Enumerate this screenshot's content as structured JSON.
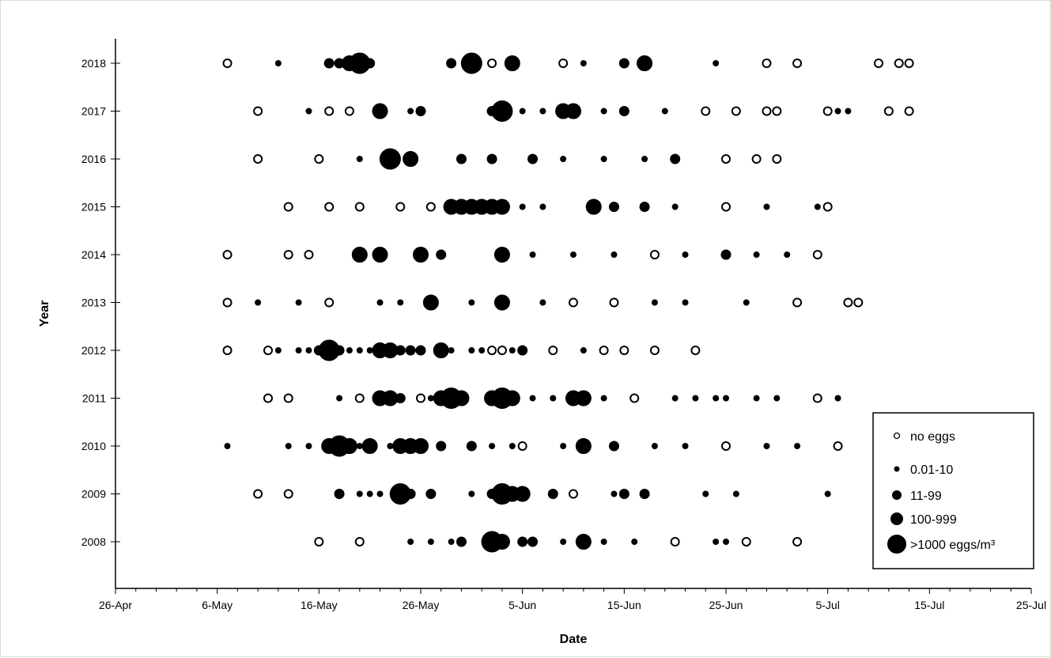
{
  "chart_data": {
    "type": "scatter",
    "title": "",
    "xlabel": "Date",
    "ylabel": "Year",
    "x_ticks": [
      "26-Apr",
      "6-May",
      "16-May",
      "26-May",
      "5-Jun",
      "15-Jun",
      "25-Jun",
      "5-Jul",
      "15-Jul",
      "25-Jul"
    ],
    "xlim": [
      "26-Apr",
      "25-Jul"
    ],
    "years": [
      "2018",
      "2017",
      "2016",
      "2015",
      "2014",
      "2013",
      "2012",
      "2011",
      "2010",
      "2009",
      "2008"
    ],
    "grid": false,
    "legend_position": "bottom-right",
    "legend": [
      {
        "key": "none",
        "label": "no eggs"
      },
      {
        "key": "a",
        "label": "0.01-10"
      },
      {
        "key": "b",
        "label": "11-99"
      },
      {
        "key": "c",
        "label": "100-999"
      },
      {
        "key": "d",
        "label": ">1000 eggs/m³"
      }
    ],
    "observations": {
      "2018": [
        [
          "7-May",
          "none"
        ],
        [
          "12-May",
          "a"
        ],
        [
          "17-May",
          "b"
        ],
        [
          "18-May",
          "b"
        ],
        [
          "19-May",
          "c"
        ],
        [
          "20-May",
          "d"
        ],
        [
          "21-May",
          "b"
        ],
        [
          "29-May",
          "b"
        ],
        [
          "31-May",
          "d"
        ],
        [
          "2-Jun",
          "none"
        ],
        [
          "4-Jun",
          "c"
        ],
        [
          "9-Jun",
          "none"
        ],
        [
          "11-Jun",
          "a"
        ],
        [
          "15-Jun",
          "b"
        ],
        [
          "17-Jun",
          "c"
        ],
        [
          "24-Jun",
          "a"
        ],
        [
          "29-Jun",
          "none"
        ],
        [
          "2-Jul",
          "none"
        ],
        [
          "10-Jul",
          "none"
        ],
        [
          "12-Jul",
          "none"
        ],
        [
          "13-Jul",
          "none"
        ]
      ],
      "2017": [
        [
          "10-May",
          "none"
        ],
        [
          "15-May",
          "a"
        ],
        [
          "17-May",
          "none"
        ],
        [
          "19-May",
          "none"
        ],
        [
          "22-May",
          "c"
        ],
        [
          "25-May",
          "a"
        ],
        [
          "26-May",
          "b"
        ],
        [
          "2-Jun",
          "b"
        ],
        [
          "3-Jun",
          "d"
        ],
        [
          "5-Jun",
          "a"
        ],
        [
          "7-Jun",
          "a"
        ],
        [
          "9-Jun",
          "c"
        ],
        [
          "10-Jun",
          "c"
        ],
        [
          "13-Jun",
          "a"
        ],
        [
          "15-Jun",
          "b"
        ],
        [
          "19-Jun",
          "a"
        ],
        [
          "23-Jun",
          "none"
        ],
        [
          "26-Jun",
          "none"
        ],
        [
          "29-Jun",
          "none"
        ],
        [
          "30-Jun",
          "none"
        ],
        [
          "5-Jul",
          "none"
        ],
        [
          "6-Jul",
          "a"
        ],
        [
          "7-Jul",
          "a"
        ],
        [
          "11-Jul",
          "none"
        ],
        [
          "13-Jul",
          "none"
        ]
      ],
      "2016": [
        [
          "10-May",
          "none"
        ],
        [
          "16-May",
          "none"
        ],
        [
          "20-May",
          "a"
        ],
        [
          "23-May",
          "d"
        ],
        [
          "25-May",
          "c"
        ],
        [
          "30-May",
          "b"
        ],
        [
          "2-Jun",
          "b"
        ],
        [
          "6-Jun",
          "b"
        ],
        [
          "9-Jun",
          "a"
        ],
        [
          "13-Jun",
          "a"
        ],
        [
          "17-Jun",
          "a"
        ],
        [
          "20-Jun",
          "b"
        ],
        [
          "25-Jun",
          "none"
        ],
        [
          "28-Jun",
          "none"
        ],
        [
          "30-Jun",
          "none"
        ]
      ],
      "2015": [
        [
          "13-May",
          "none"
        ],
        [
          "17-May",
          "none"
        ],
        [
          "20-May",
          "none"
        ],
        [
          "24-May",
          "none"
        ],
        [
          "27-May",
          "none"
        ],
        [
          "29-May",
          "c"
        ],
        [
          "30-May",
          "c"
        ],
        [
          "31-May",
          "c"
        ],
        [
          "1-Jun",
          "c"
        ],
        [
          "2-Jun",
          "c"
        ],
        [
          "3-Jun",
          "c"
        ],
        [
          "5-Jun",
          "a"
        ],
        [
          "7-Jun",
          "a"
        ],
        [
          "12-Jun",
          "c"
        ],
        [
          "14-Jun",
          "b"
        ],
        [
          "17-Jun",
          "b"
        ],
        [
          "20-Jun",
          "a"
        ],
        [
          "25-Jun",
          "none"
        ],
        [
          "29-Jun",
          "a"
        ],
        [
          "4-Jul",
          "a"
        ],
        [
          "5-Jul",
          "none"
        ]
      ],
      "2014": [
        [
          "7-May",
          "none"
        ],
        [
          "13-May",
          "none"
        ],
        [
          "15-May",
          "none"
        ],
        [
          "20-May",
          "c"
        ],
        [
          "22-May",
          "c"
        ],
        [
          "26-May",
          "c"
        ],
        [
          "28-May",
          "b"
        ],
        [
          "3-Jun",
          "c"
        ],
        [
          "6-Jun",
          "a"
        ],
        [
          "10-Jun",
          "a"
        ],
        [
          "14-Jun",
          "a"
        ],
        [
          "18-Jun",
          "none"
        ],
        [
          "21-Jun",
          "a"
        ],
        [
          "25-Jun",
          "b"
        ],
        [
          "28-Jun",
          "a"
        ],
        [
          "1-Jul",
          "a"
        ],
        [
          "4-Jul",
          "none"
        ]
      ],
      "2013": [
        [
          "7-May",
          "none"
        ],
        [
          "10-May",
          "a"
        ],
        [
          "14-May",
          "a"
        ],
        [
          "17-May",
          "none"
        ],
        [
          "22-May",
          "a"
        ],
        [
          "24-May",
          "a"
        ],
        [
          "27-May",
          "c"
        ],
        [
          "31-May",
          "a"
        ],
        [
          "3-Jun",
          "c"
        ],
        [
          "7-Jun",
          "a"
        ],
        [
          "10-Jun",
          "none"
        ],
        [
          "14-Jun",
          "none"
        ],
        [
          "18-Jun",
          "a"
        ],
        [
          "21-Jun",
          "a"
        ],
        [
          "27-Jun",
          "a"
        ],
        [
          "2-Jul",
          "none"
        ],
        [
          "7-Jul",
          "none"
        ],
        [
          "8-Jul",
          "none"
        ]
      ],
      "2012": [
        [
          "7-May",
          "none"
        ],
        [
          "11-May",
          "none"
        ],
        [
          "12-May",
          "a"
        ],
        [
          "14-May",
          "a"
        ],
        [
          "15-May",
          "a"
        ],
        [
          "16-May",
          "b"
        ],
        [
          "17-May",
          "d"
        ],
        [
          "18-May",
          "b"
        ],
        [
          "19-May",
          "a"
        ],
        [
          "20-May",
          "a"
        ],
        [
          "21-May",
          "a"
        ],
        [
          "22-May",
          "c"
        ],
        [
          "23-May",
          "c"
        ],
        [
          "24-May",
          "b"
        ],
        [
          "25-May",
          "b"
        ],
        [
          "26-May",
          "b"
        ],
        [
          "28-May",
          "c"
        ],
        [
          "29-May",
          "a"
        ],
        [
          "31-May",
          "a"
        ],
        [
          "1-Jun",
          "a"
        ],
        [
          "2-Jun",
          "none"
        ],
        [
          "3-Jun",
          "none"
        ],
        [
          "4-Jun",
          "a"
        ],
        [
          "5-Jun",
          "b"
        ],
        [
          "8-Jun",
          "none"
        ],
        [
          "11-Jun",
          "a"
        ],
        [
          "13-Jun",
          "none"
        ],
        [
          "15-Jun",
          "none"
        ],
        [
          "18-Jun",
          "none"
        ],
        [
          "22-Jun",
          "none"
        ]
      ],
      "2011": [
        [
          "11-May",
          "none"
        ],
        [
          "13-May",
          "none"
        ],
        [
          "18-May",
          "a"
        ],
        [
          "20-May",
          "none"
        ],
        [
          "22-May",
          "c"
        ],
        [
          "23-May",
          "c"
        ],
        [
          "24-May",
          "b"
        ],
        [
          "26-May",
          "none"
        ],
        [
          "27-May",
          "a"
        ],
        [
          "28-May",
          "c"
        ],
        [
          "29-May",
          "d"
        ],
        [
          "30-May",
          "c"
        ],
        [
          "2-Jun",
          "c"
        ],
        [
          "3-Jun",
          "d"
        ],
        [
          "4-Jun",
          "c"
        ],
        [
          "6-Jun",
          "a"
        ],
        [
          "8-Jun",
          "a"
        ],
        [
          "10-Jun",
          "c"
        ],
        [
          "11-Jun",
          "c"
        ],
        [
          "13-Jun",
          "a"
        ],
        [
          "16-Jun",
          "none"
        ],
        [
          "20-Jun",
          "a"
        ],
        [
          "22-Jun",
          "a"
        ],
        [
          "24-Jun",
          "a"
        ],
        [
          "25-Jun",
          "a"
        ],
        [
          "28-Jun",
          "a"
        ],
        [
          "30-Jun",
          "a"
        ],
        [
          "4-Jul",
          "none"
        ],
        [
          "6-Jul",
          "a"
        ]
      ],
      "2010": [
        [
          "7-May",
          "a"
        ],
        [
          "13-May",
          "a"
        ],
        [
          "15-May",
          "a"
        ],
        [
          "17-May",
          "c"
        ],
        [
          "18-May",
          "d"
        ],
        [
          "19-May",
          "c"
        ],
        [
          "20-May",
          "a"
        ],
        [
          "21-May",
          "c"
        ],
        [
          "23-May",
          "a"
        ],
        [
          "24-May",
          "c"
        ],
        [
          "25-May",
          "c"
        ],
        [
          "26-May",
          "c"
        ],
        [
          "28-May",
          "b"
        ],
        [
          "31-May",
          "b"
        ],
        [
          "2-Jun",
          "a"
        ],
        [
          "4-Jun",
          "a"
        ],
        [
          "5-Jun",
          "none"
        ],
        [
          "9-Jun",
          "a"
        ],
        [
          "11-Jun",
          "c"
        ],
        [
          "14-Jun",
          "b"
        ],
        [
          "18-Jun",
          "a"
        ],
        [
          "21-Jun",
          "a"
        ],
        [
          "25-Jun",
          "none"
        ],
        [
          "29-Jun",
          "a"
        ],
        [
          "2-Jul",
          "a"
        ],
        [
          "6-Jul",
          "none"
        ]
      ],
      "2009": [
        [
          "10-May",
          "none"
        ],
        [
          "13-May",
          "none"
        ],
        [
          "18-May",
          "b"
        ],
        [
          "20-May",
          "a"
        ],
        [
          "21-May",
          "a"
        ],
        [
          "22-May",
          "a"
        ],
        [
          "24-May",
          "d"
        ],
        [
          "25-May",
          "b"
        ],
        [
          "27-May",
          "b"
        ],
        [
          "31-May",
          "a"
        ],
        [
          "2-Jun",
          "b"
        ],
        [
          "3-Jun",
          "d"
        ],
        [
          "4-Jun",
          "c"
        ],
        [
          "5-Jun",
          "c"
        ],
        [
          "8-Jun",
          "b"
        ],
        [
          "10-Jun",
          "none"
        ],
        [
          "14-Jun",
          "a"
        ],
        [
          "15-Jun",
          "b"
        ],
        [
          "17-Jun",
          "b"
        ],
        [
          "23-Jun",
          "a"
        ],
        [
          "26-Jun",
          "a"
        ],
        [
          "5-Jul",
          "a"
        ]
      ],
      "2008": [
        [
          "16-May",
          "none"
        ],
        [
          "20-May",
          "none"
        ],
        [
          "25-May",
          "a"
        ],
        [
          "27-May",
          "a"
        ],
        [
          "29-May",
          "a"
        ],
        [
          "30-May",
          "b"
        ],
        [
          "2-Jun",
          "d"
        ],
        [
          "3-Jun",
          "c"
        ],
        [
          "5-Jun",
          "b"
        ],
        [
          "6-Jun",
          "b"
        ],
        [
          "9-Jun",
          "a"
        ],
        [
          "11-Jun",
          "c"
        ],
        [
          "13-Jun",
          "a"
        ],
        [
          "16-Jun",
          "a"
        ],
        [
          "20-Jun",
          "none"
        ],
        [
          "24-Jun",
          "a"
        ],
        [
          "25-Jun",
          "a"
        ],
        [
          "27-Jun",
          "none"
        ],
        [
          "2-Jul",
          "none"
        ]
      ]
    }
  }
}
